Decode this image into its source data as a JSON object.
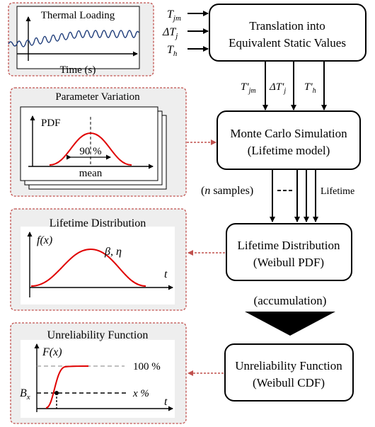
{
  "left_panels": {
    "thermal": {
      "title": "Thermal Loading",
      "x_label": "Time (s)"
    },
    "parameter": {
      "title": "Parameter Variation",
      "y_label": "PDF",
      "percent": "90 %",
      "x_label": "mean"
    },
    "lifetime": {
      "title": "Lifetime Distribution",
      "y_label": "f(x)",
      "params": "β, η",
      "x_label": "t"
    },
    "unreliability": {
      "title": "Unreliability Function",
      "y_label": "F(x)",
      "level_100": "100 %",
      "level_x": "x %",
      "bx": "B",
      "bx_sub": "x",
      "x_label": "t"
    }
  },
  "inputs": {
    "tjm": {
      "base": "T",
      "sub": "jm"
    },
    "dtj": {
      "base": "ΔT",
      "sub": "j"
    },
    "th": {
      "base": "T",
      "sub": "h"
    }
  },
  "outputs": {
    "tjm": {
      "base": "T'",
      "sub": "jm"
    },
    "dtj": {
      "base": "ΔT'",
      "sub": "j"
    },
    "th": {
      "base": "T'",
      "sub": "h"
    }
  },
  "boxes": {
    "translation": {
      "line1": "Translation into",
      "line2": "Equivalent Static Values"
    },
    "montecarlo": {
      "line1": "Monte Carlo Simulation",
      "line2": "(Lifetime model)"
    },
    "lifetime": {
      "line1": "Lifetime Distribution",
      "line2": "(Weibull PDF)"
    },
    "unreliability": {
      "line1": "Unreliability Function",
      "line2": "(Weibull CDF)"
    }
  },
  "labels": {
    "samples_open": "(",
    "samples_n": "n",
    "samples_rest": " samples)",
    "lifetime": "Lifetime",
    "accumulation": "(accumulation)"
  }
}
